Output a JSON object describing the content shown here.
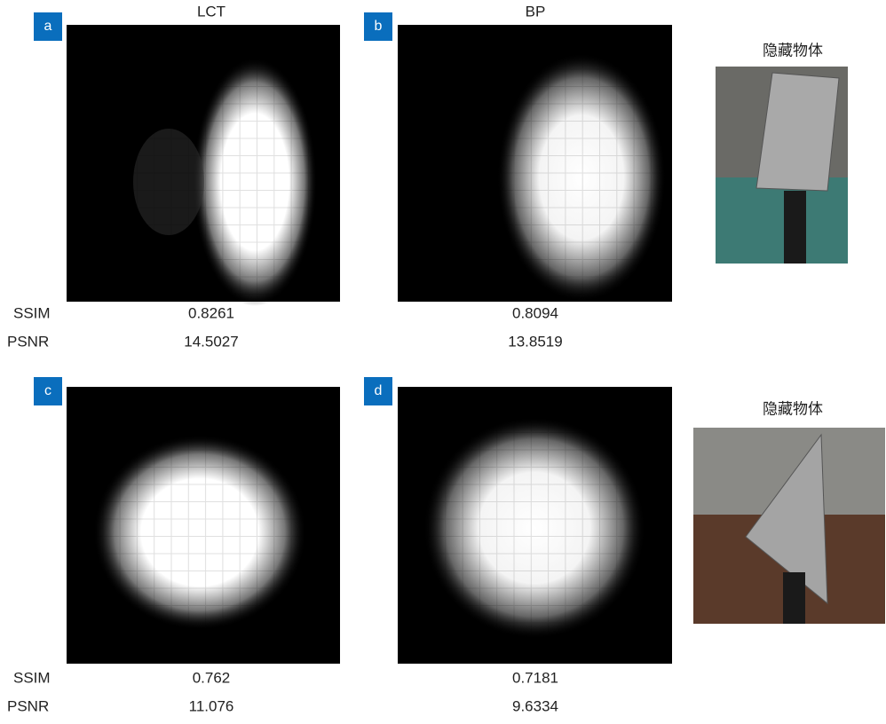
{
  "panels": [
    {
      "label": "a",
      "title": "LCT",
      "ssim": "0.8261",
      "psnr": "14.5027"
    },
    {
      "label": "b",
      "title": "BP",
      "ssim": "0.8094",
      "psnr": "13.8519"
    },
    {
      "label": "c",
      "ssim": "0.762",
      "psnr": "11.076"
    },
    {
      "label": "d",
      "ssim": "0.7181",
      "psnr": "9.6334"
    }
  ],
  "object_captions": [
    "隐藏物体",
    "隐藏物体"
  ],
  "row_labels": {
    "ssim": "SSIM",
    "psnr": "PSNR"
  }
}
